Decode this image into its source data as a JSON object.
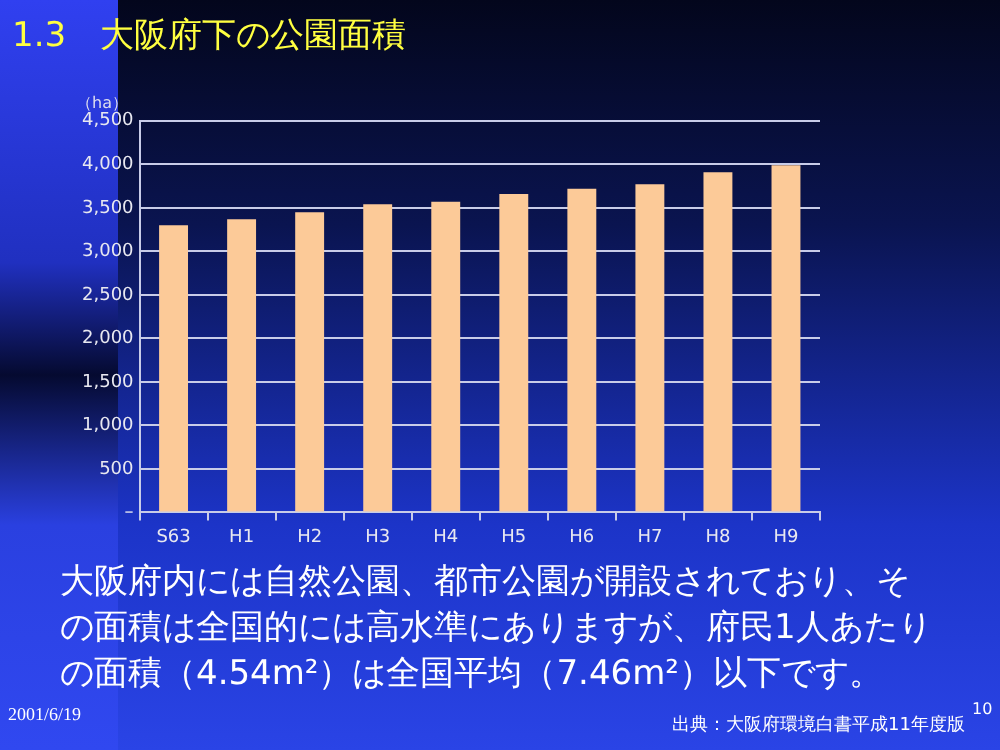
{
  "chart_data": {
    "type": "bar",
    "title": "1.3　大阪府下の公園面積",
    "ylabel": "（ha）",
    "categories": [
      "S63",
      "H1",
      "H2",
      "H3",
      "H4",
      "H5",
      "H6",
      "H7",
      "H8",
      "H9"
    ],
    "values": [
      3300,
      3370,
      3450,
      3540,
      3570,
      3660,
      3720,
      3770,
      3910,
      3990
    ],
    "color": "#fcca98",
    "ylim": [
      0,
      4500
    ],
    "yticks": [
      {
        "value": 0,
        "label": "–"
      },
      {
        "value": 500,
        "label": "500"
      },
      {
        "value": 1000,
        "label": "1,000"
      },
      {
        "value": 1500,
        "label": "1,500"
      },
      {
        "value": 2000,
        "label": "2,000"
      },
      {
        "value": 2500,
        "label": "2,500"
      },
      {
        "value": 3000,
        "label": "3,000"
      },
      {
        "value": 3500,
        "label": "3,500"
      },
      {
        "value": 4000,
        "label": "4,000"
      },
      {
        "value": 4500,
        "label": "4,500"
      }
    ],
    "grid": "y",
    "legend": false,
    "annotations": [
      "大阪府内には自然公園、都市公園が開設されており、その面積は全国的には高水準にありますが、府民1人あたりの面積（4.54m²）は全国平均（7.46m²）以下です。",
      "2001/6/19",
      "出典：大阪府環境白書平成11年度版",
      "10"
    ]
  }
}
